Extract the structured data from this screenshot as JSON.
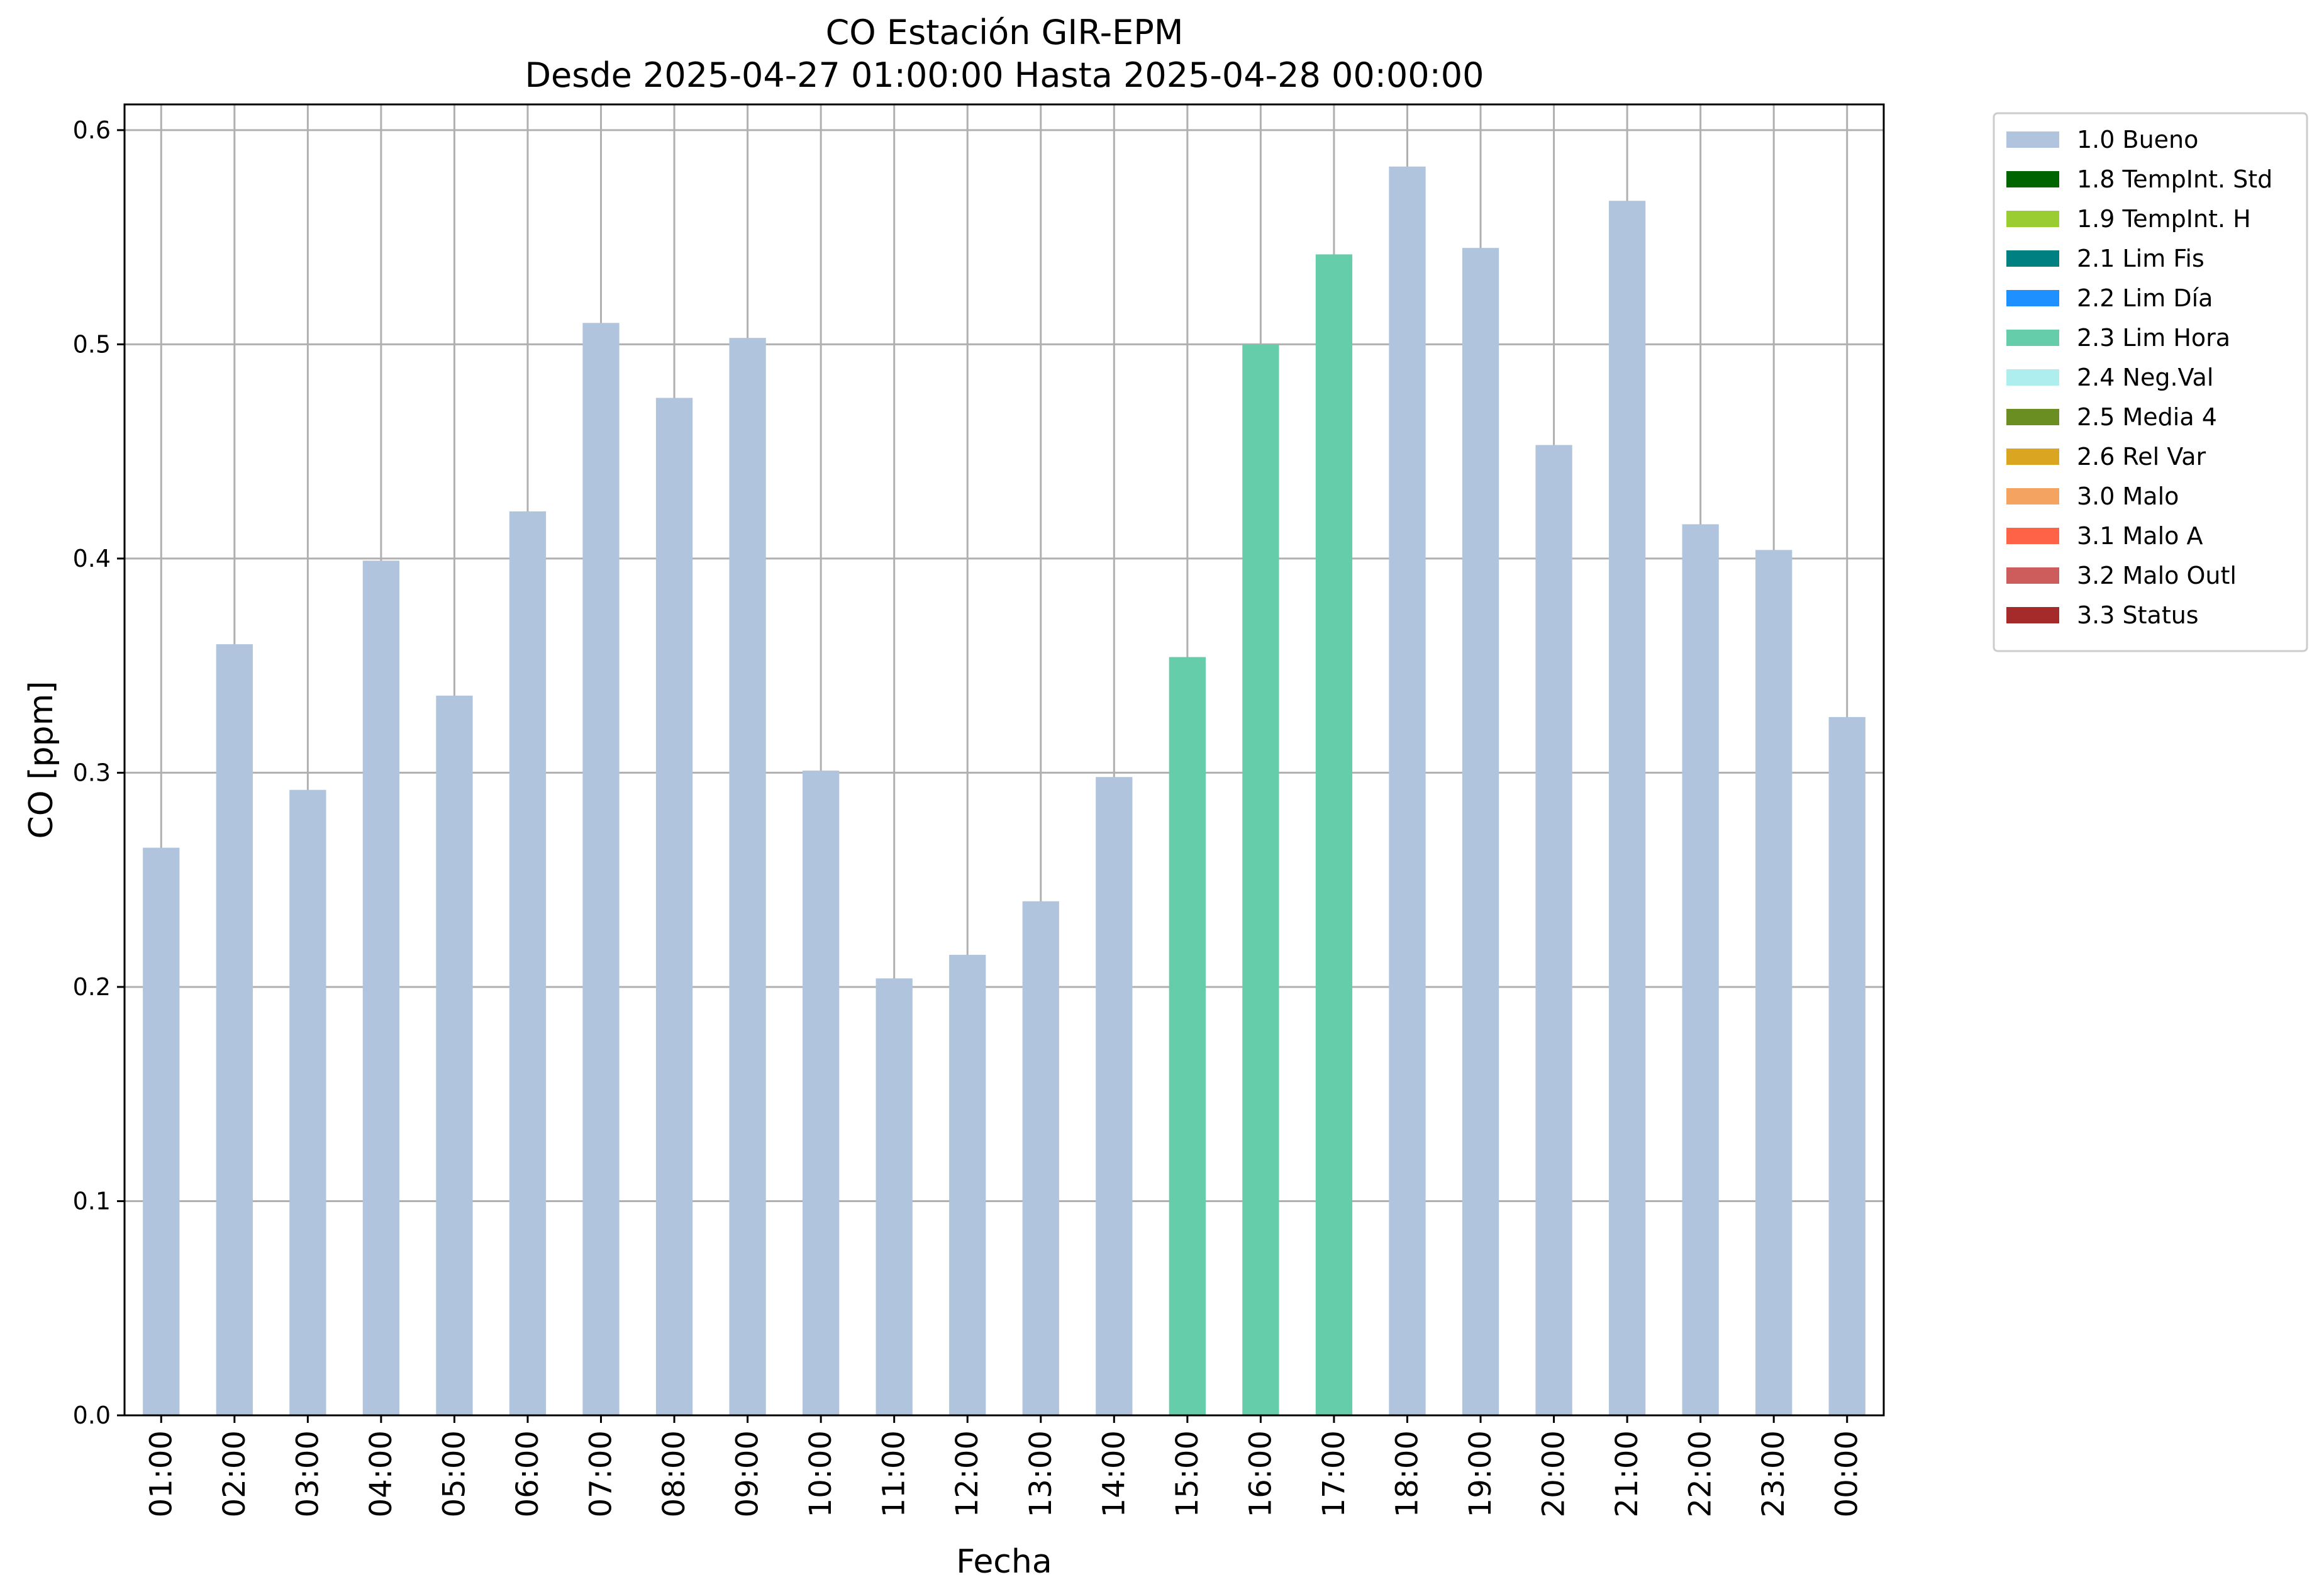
{
  "chart_data": {
    "type": "bar",
    "title": "CO Estación GIR-EPM",
    "subtitle": "Desde 2025-04-27 01:00:00 Hasta 2025-04-28 00:00:00",
    "xlabel": "Fecha",
    "ylabel": "CO [ppm]",
    "ylim": [
      0,
      0.612
    ],
    "yticks": [
      "0.0",
      "0.1",
      "0.2",
      "0.3",
      "0.4",
      "0.5",
      "0.6"
    ],
    "grid": true,
    "legend_position": "outside-top-right",
    "categories": [
      "01:00",
      "02:00",
      "03:00",
      "04:00",
      "05:00",
      "06:00",
      "07:00",
      "08:00",
      "09:00",
      "10:00",
      "11:00",
      "12:00",
      "13:00",
      "14:00",
      "15:00",
      "16:00",
      "17:00",
      "18:00",
      "19:00",
      "20:00",
      "21:00",
      "22:00",
      "23:00",
      "00:00"
    ],
    "values": [
      0.265,
      0.36,
      0.292,
      0.399,
      0.336,
      0.422,
      0.51,
      0.475,
      0.503,
      0.301,
      0.204,
      0.215,
      0.24,
      0.298,
      0.354,
      0.5,
      0.542,
      0.583,
      0.545,
      0.453,
      0.567,
      0.416,
      0.404,
      0.326
    ],
    "flags": [
      "1.0 Bueno",
      "1.0 Bueno",
      "1.0 Bueno",
      "1.0 Bueno",
      "1.0 Bueno",
      "1.0 Bueno",
      "1.0 Bueno",
      "1.0 Bueno",
      "1.0 Bueno",
      "1.0 Bueno",
      "1.0 Bueno",
      "1.0 Bueno",
      "1.0 Bueno",
      "1.0 Bueno",
      "2.3 Lim Hora",
      "2.3 Lim Hora",
      "2.3 Lim Hora",
      "1.0 Bueno",
      "1.0 Bueno",
      "1.0 Bueno",
      "1.0 Bueno",
      "1.0 Bueno",
      "1.0 Bueno",
      "1.0 Bueno"
    ],
    "legend": [
      {
        "label": "1.0 Bueno",
        "color": "#b0c4de"
      },
      {
        "label": "1.8 TempInt. Std",
        "color": "#006400"
      },
      {
        "label": "1.9 TempInt. H",
        "color": "#9acd32"
      },
      {
        "label": "2.1 Lim Fis",
        "color": "#008080"
      },
      {
        "label": "2.2 Lim Día",
        "color": "#1e90ff"
      },
      {
        "label": "2.3 Lim Hora",
        "color": "#66cdaa"
      },
      {
        "label": "2.4 Neg.Val",
        "color": "#afeeee"
      },
      {
        "label": "2.5 Media 4",
        "color": "#6b8e23"
      },
      {
        "label": "2.6 Rel Var",
        "color": "#daa520"
      },
      {
        "label": "3.0 Malo",
        "color": "#f4a460"
      },
      {
        "label": "3.1 Malo A",
        "color": "#ff6347"
      },
      {
        "label": "3.2 Malo Outl",
        "color": "#cd5c5c"
      },
      {
        "label": "3.3 Status",
        "color": "#a52a2a"
      }
    ]
  }
}
